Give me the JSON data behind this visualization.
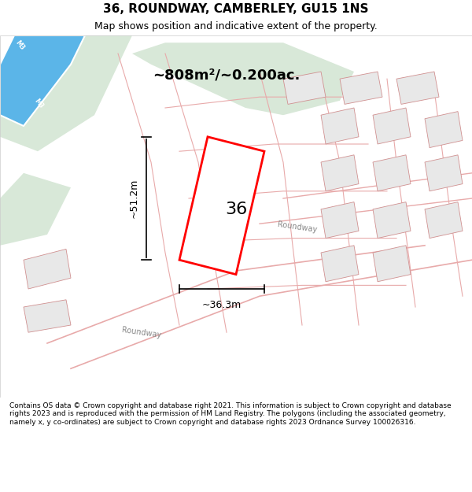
{
  "title": "36, ROUNDWAY, CAMBERLEY, GU15 1NS",
  "subtitle": "Map shows position and indicative extent of the property.",
  "area_text": "~808m²/~0.200ac.",
  "dim_height": "~51.2m",
  "dim_width": "~36.3m",
  "label_number": "36",
  "footer": "Contains OS data © Crown copyright and database right 2021. This information is subject to Crown copyright and database rights 2023 and is reproduced with the permission of HM Land Registry. The polygons (including the associated geometry, namely x, y co-ordinates) are subject to Crown copyright and database rights 2023 Ordnance Survey 100026316.",
  "bg_color": "#f9f9f9",
  "map_bg": "#ffffff",
  "road_label1": "Roundway",
  "road_label2": "Roundway",
  "motorway_label": "M3"
}
